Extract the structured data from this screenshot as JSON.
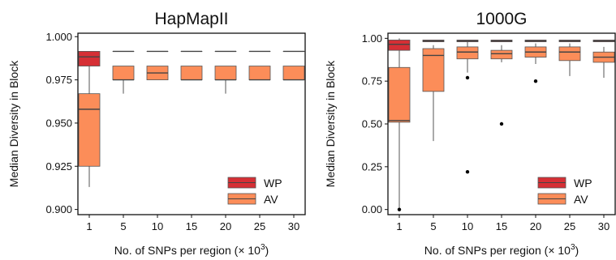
{
  "colors": {
    "WP": "#d62f35",
    "AV": "#fc8d59",
    "whisker": "#555555",
    "median": "#444444",
    "frame": "#111111"
  },
  "shared": {
    "ylabel": "Median Diversity in Block",
    "xlabel_prefix": "No. of SNPs per region (",
    "xlabel_times": "×",
    "xlabel_base": "10",
    "xlabel_exp": "3",
    "xlabel_suffix": ")"
  },
  "chart_data": [
    {
      "type": "box",
      "title": "HapMapII",
      "categories": [
        "1",
        "5",
        "10",
        "15",
        "20",
        "25",
        "30"
      ],
      "ylim": [
        0.897,
        1.002
      ],
      "yticks": [
        "0.900",
        "0.925",
        "0.950",
        "0.975",
        "1.000"
      ],
      "legend": {
        "position": "bottom-right",
        "entries": [
          "WP",
          "AV"
        ]
      },
      "series": [
        {
          "name": "WP",
          "boxes": [
            {
              "category": "1",
              "whislo": 0.983,
              "q1": 0.983,
              "med": 0.9883,
              "q3": 0.9915,
              "whishi": 0.9915
            },
            {
              "category": "5",
              "whislo": 0.9915,
              "q1": 0.9915,
              "med": 0.9915,
              "q3": 0.9915,
              "whishi": 0.9915
            },
            {
              "category": "10",
              "whislo": 0.9915,
              "q1": 0.9915,
              "med": 0.9915,
              "q3": 0.9915,
              "whishi": 0.9915
            },
            {
              "category": "15",
              "whislo": 0.9915,
              "q1": 0.9915,
              "med": 0.9915,
              "q3": 0.9915,
              "whishi": 0.9915
            },
            {
              "category": "20",
              "whislo": 0.9915,
              "q1": 0.9915,
              "med": 0.9915,
              "q3": 0.9915,
              "whishi": 0.9915
            },
            {
              "category": "25",
              "whislo": 0.9915,
              "q1": 0.9915,
              "med": 0.9915,
              "q3": 0.9915,
              "whishi": 0.9915
            },
            {
              "category": "30",
              "whislo": 0.9915,
              "q1": 0.9915,
              "med": 0.9915,
              "q3": 0.9915,
              "whishi": 0.9915
            }
          ]
        },
        {
          "name": "AV",
          "boxes": [
            {
              "category": "1",
              "whislo": 0.913,
              "q1": 0.925,
              "med": 0.958,
              "q3": 0.967,
              "whishi": 0.983
            },
            {
              "category": "5",
              "whislo": 0.967,
              "q1": 0.975,
              "med": 0.975,
              "q3": 0.983,
              "whishi": 0.983
            },
            {
              "category": "10",
              "whislo": 0.975,
              "q1": 0.975,
              "med": 0.979,
              "q3": 0.983,
              "whishi": 0.983
            },
            {
              "category": "15",
              "whislo": 0.975,
              "q1": 0.975,
              "med": 0.975,
              "q3": 0.983,
              "whishi": 0.983
            },
            {
              "category": "20",
              "whislo": 0.967,
              "q1": 0.975,
              "med": 0.975,
              "q3": 0.983,
              "whishi": 0.983
            },
            {
              "category": "25",
              "whislo": 0.975,
              "q1": 0.975,
              "med": 0.975,
              "q3": 0.983,
              "whishi": 0.983
            },
            {
              "category": "30",
              "whislo": 0.975,
              "q1": 0.975,
              "med": 0.975,
              "q3": 0.983,
              "whishi": 0.983
            }
          ]
        }
      ]
    },
    {
      "type": "box",
      "title": "1000G",
      "categories": [
        "1",
        "5",
        "10",
        "15",
        "20",
        "25",
        "30"
      ],
      "ylim": [
        -0.03,
        1.03
      ],
      "yticks": [
        "0.00",
        "0.25",
        "0.50",
        "0.75",
        "1.00"
      ],
      "legend": {
        "position": "bottom-right",
        "entries": [
          "WP",
          "AV"
        ]
      },
      "series": [
        {
          "name": "WP",
          "boxes": [
            {
              "category": "1",
              "whislo": 0.92,
              "q1": 0.93,
              "med": 0.965,
              "q3": 0.99,
              "whishi": 1.0
            },
            {
              "category": "5",
              "whislo": 0.98,
              "q1": 0.98,
              "med": 0.985,
              "q3": 0.99,
              "whishi": 0.99
            },
            {
              "category": "10",
              "whislo": 0.98,
              "q1": 0.98,
              "med": 0.985,
              "q3": 0.99,
              "whishi": 0.99
            },
            {
              "category": "15",
              "whislo": 0.98,
              "q1": 0.98,
              "med": 0.985,
              "q3": 0.99,
              "whishi": 0.99
            },
            {
              "category": "20",
              "whislo": 0.98,
              "q1": 0.98,
              "med": 0.985,
              "q3": 0.99,
              "whishi": 0.99
            },
            {
              "category": "25",
              "whislo": 0.98,
              "q1": 0.98,
              "med": 0.985,
              "q3": 0.99,
              "whishi": 0.99
            },
            {
              "category": "30",
              "whislo": 0.98,
              "q1": 0.98,
              "med": 0.985,
              "q3": 0.99,
              "whishi": 0.99
            }
          ]
        },
        {
          "name": "AV",
          "boxes": [
            {
              "category": "1",
              "whislo": 0.01,
              "q1": 0.51,
              "med": 0.52,
              "q3": 0.83,
              "whishi": 0.99,
              "outliers": [
                0.0
              ]
            },
            {
              "category": "5",
              "whislo": 0.4,
              "q1": 0.69,
              "med": 0.9,
              "q3": 0.94,
              "whishi": 0.96
            },
            {
              "category": "10",
              "whislo": 0.8,
              "q1": 0.88,
              "med": 0.92,
              "q3": 0.95,
              "whishi": 0.98,
              "outliers": [
                0.77,
                0.22
              ]
            },
            {
              "category": "15",
              "whislo": 0.86,
              "q1": 0.88,
              "med": 0.91,
              "q3": 0.93,
              "whishi": 0.96,
              "outliers": [
                0.5
              ]
            },
            {
              "category": "20",
              "whislo": 0.85,
              "q1": 0.89,
              "med": 0.92,
              "q3": 0.95,
              "whishi": 0.97,
              "outliers": [
                0.75
              ]
            },
            {
              "category": "25",
              "whislo": 0.78,
              "q1": 0.87,
              "med": 0.92,
              "q3": 0.95,
              "whishi": 0.97
            },
            {
              "category": "30",
              "whislo": 0.77,
              "q1": 0.86,
              "med": 0.89,
              "q3": 0.92,
              "whishi": 0.95
            }
          ]
        }
      ]
    }
  ]
}
